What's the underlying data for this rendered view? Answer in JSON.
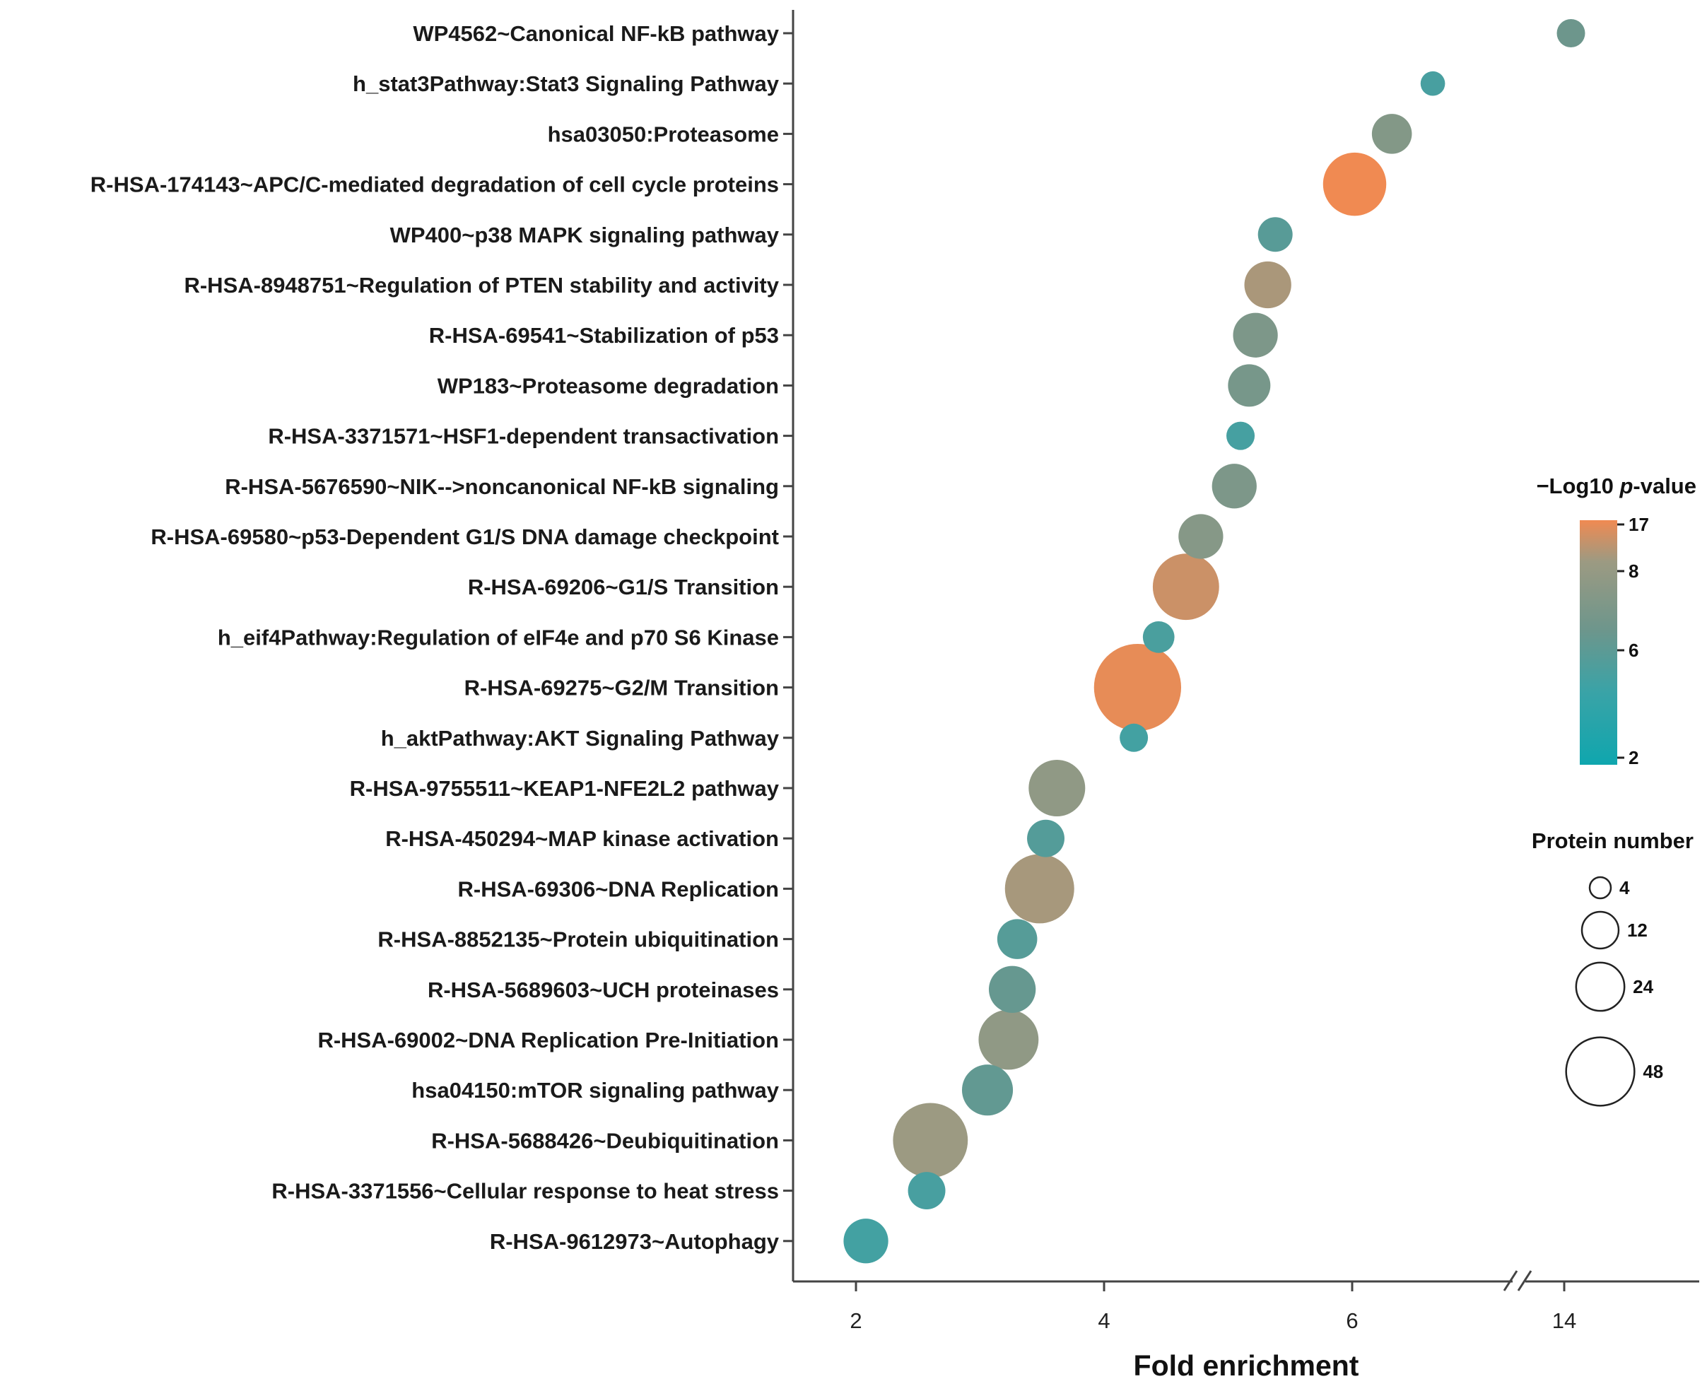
{
  "chart_data": {
    "type": "scatter",
    "subtype": "bubble",
    "title": "",
    "xlabel": "Fold enrichment",
    "ylabel": "",
    "xticks": [
      2,
      4,
      6,
      14
    ],
    "axis_break": true,
    "categories": [
      "WP4562~Canonical NF-kB pathway",
      "h_stat3Pathway:Stat3 Signaling Pathway",
      "hsa03050:Proteasome",
      "R-HSA-174143~APC/C-mediated degradation of cell cycle proteins",
      "WP400~p38 MAPK signaling pathway",
      "R-HSA-8948751~Regulation of PTEN stability and activity",
      "R-HSA-69541~Stabilization of p53",
      "WP183~Proteasome degradation",
      "R-HSA-3371571~HSF1-dependent transactivation",
      "R-HSA-5676590~NIK-->noncanonical NF-kB signaling",
      "R-HSA-69580~p53-Dependent G1/S DNA damage checkpoint",
      "R-HSA-69206~G1/S Transition",
      "h_eif4Pathway:Regulation of eIF4e and p70 S6 Kinase",
      "R-HSA-69275~G2/M Transition",
      "h_aktPathway:AKT Signaling Pathway",
      "R-HSA-9755511~KEAP1-NFE2L2 pathway",
      "R-HSA-450294~MAP kinase activation",
      "R-HSA-69306~DNA Replication",
      "R-HSA-8852135~Protein ubiquitination",
      "R-HSA-5689603~UCH proteinases",
      "R-HSA-69002~DNA Replication Pre-Initiation",
      "hsa04150:mTOR signaling pathway",
      "R-HSA-5688426~Deubiquitination",
      "R-HSA-3371556~Cellular response to heat stress",
      "R-HSA-9612973~Autophagy"
    ],
    "fold_enrichment": [
      14.1,
      6.65,
      6.32,
      6.02,
      5.38,
      5.32,
      5.22,
      5.17,
      5.1,
      5.05,
      4.78,
      4.66,
      4.44,
      4.27,
      4.24,
      3.62,
      3.53,
      3.48,
      3.3,
      3.26,
      3.23,
      3.06,
      2.6,
      2.57,
      2.08
    ],
    "protein_number": [
      4,
      3,
      8,
      20,
      6,
      11,
      10,
      9,
      4,
      10,
      10,
      22,
      5,
      38,
      4,
      16,
      7,
      24,
      8,
      11,
      18,
      13,
      28,
      7,
      10
    ],
    "neg_log10_p": [
      6.5,
      5.2,
      7.2,
      17,
      5.9,
      9.5,
      7.0,
      6.8,
      5.1,
      7.0,
      7.3,
      13,
      5.3,
      16,
      5.0,
      7.6,
      5.7,
      9.2,
      5.8,
      6.3,
      7.6,
      6.2,
      8.0,
      5.2,
      5.0
    ],
    "color_legend": {
      "title_prefix": "−Log10 ",
      "title_italic": "p",
      "title_suffix": "-value",
      "ticks": [
        "17",
        "8",
        "6",
        "2"
      ],
      "tick_values": [
        17,
        8,
        6,
        2
      ],
      "colors": [
        "#f08a52",
        "#9c9a82",
        "#6d968c",
        "#3aa3a7",
        "#0fa6ae"
      ]
    },
    "size_legend": {
      "title": "Protein number",
      "labels": [
        "4",
        "12",
        "24",
        "48"
      ],
      "values": [
        4,
        12,
        24,
        48
      ]
    }
  }
}
